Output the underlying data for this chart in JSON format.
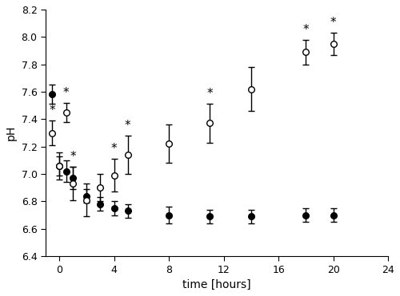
{
  "title": "",
  "xlabel": "time [hours]",
  "ylabel": "pH",
  "xlim": [
    -1,
    24
  ],
  "ylim": [
    6.4,
    8.2
  ],
  "xticks": [
    0,
    4,
    8,
    12,
    16,
    20,
    24
  ],
  "yticks": [
    6.4,
    6.6,
    6.8,
    7.0,
    7.2,
    7.4,
    7.6,
    7.8,
    8.0,
    8.2
  ],
  "filled_x": [
    -0.5,
    0,
    0.5,
    1,
    2,
    3,
    4,
    5,
    8,
    11,
    14,
    18,
    20
  ],
  "filled_y": [
    7.58,
    7.06,
    7.02,
    6.97,
    6.84,
    6.78,
    6.75,
    6.73,
    6.7,
    6.69,
    6.69,
    6.7,
    6.7
  ],
  "filled_err": [
    0.07,
    0.07,
    0.08,
    0.08,
    0.05,
    0.05,
    0.05,
    0.05,
    0.06,
    0.05,
    0.05,
    0.05,
    0.05
  ],
  "open_x": [
    -0.5,
    0,
    0.5,
    1,
    2,
    3,
    4,
    5,
    8,
    11,
    14,
    18,
    20
  ],
  "open_y": [
    7.3,
    7.06,
    7.45,
    6.93,
    6.81,
    6.9,
    6.99,
    7.14,
    7.22,
    7.37,
    7.62,
    7.89,
    7.95
  ],
  "open_err": [
    0.09,
    0.1,
    0.07,
    0.12,
    0.12,
    0.1,
    0.12,
    0.14,
    0.14,
    0.14,
    0.16,
    0.09,
    0.08
  ],
  "asterisk_open_indices": [
    0,
    2,
    3,
    6,
    7,
    9,
    11,
    12
  ],
  "line_color": "#000000",
  "filled_face": "#000000",
  "open_face": "#ffffff",
  "marker_size": 5.5,
  "linewidth": 1.2,
  "capsize": 3,
  "elinewidth": 1.0,
  "bg_color": "#ffffff",
  "fontsize_axis_label": 10,
  "fontsize_tick": 9,
  "fontsize_asterisk": 11
}
